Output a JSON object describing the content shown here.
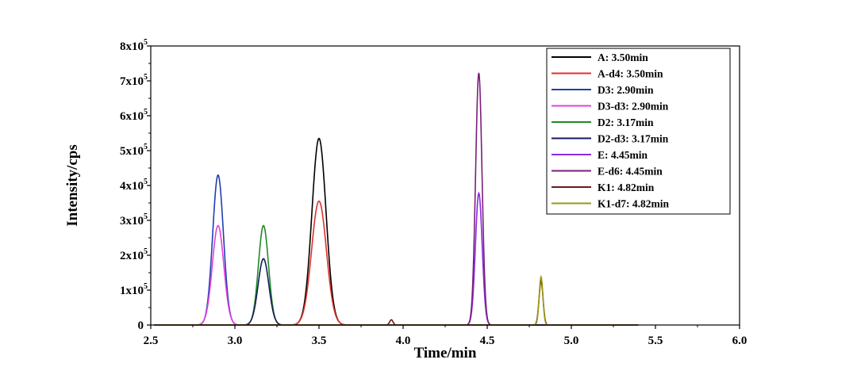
{
  "chart_data": {
    "type": "line",
    "title": "",
    "xlabel": "Time/min",
    "ylabel": "Intensity/cps",
    "xlim": [
      2.5,
      6.0
    ],
    "ylim": [
      0,
      800000
    ],
    "x_ticks": [
      2.5,
      3.0,
      3.5,
      4.0,
      4.5,
      5.0,
      5.5,
      6.0
    ],
    "x_tick_labels": [
      "2.5",
      "3.0",
      "3.5",
      "4.0",
      "4.5",
      "5.0",
      "5.5",
      "6.0"
    ],
    "y_ticks": [
      0,
      100000,
      200000,
      300000,
      400000,
      500000,
      600000,
      700000,
      800000
    ],
    "y_tick_labels": [
      {
        "mantissa": "0",
        "exp": ""
      },
      {
        "mantissa": "1x10",
        "exp": "5"
      },
      {
        "mantissa": "2x10",
        "exp": "5"
      },
      {
        "mantissa": "3x10",
        "exp": "5"
      },
      {
        "mantissa": "4x10",
        "exp": "5"
      },
      {
        "mantissa": "5x10",
        "exp": "5"
      },
      {
        "mantissa": "6x10",
        "exp": "5"
      },
      {
        "mantissa": "7x10",
        "exp": "5"
      },
      {
        "mantissa": "8x10",
        "exp": "5"
      }
    ],
    "grid": false,
    "legend_position": "top-right",
    "series": [
      {
        "name": "A: 3.50min",
        "color": "#000000",
        "peaks": [
          {
            "rt": 3.5,
            "height": 535000,
            "width": 0.042
          }
        ]
      },
      {
        "name": "A-d4: 3.50min",
        "color": "#e0302a",
        "peaks": [
          {
            "rt": 3.5,
            "height": 355000,
            "width": 0.044
          }
        ]
      },
      {
        "name": "D3: 2.90min",
        "color": "#1f3fb0",
        "peaks": [
          {
            "rt": 2.9,
            "height": 430000,
            "width": 0.032
          }
        ]
      },
      {
        "name": "D3-d3: 2.90min",
        "color": "#e040e0",
        "peaks": [
          {
            "rt": 2.9,
            "height": 285000,
            "width": 0.034
          }
        ]
      },
      {
        "name": "D2: 3.17min",
        "color": "#1f8a2a",
        "peaks": [
          {
            "rt": 3.17,
            "height": 285000,
            "width": 0.03
          }
        ]
      },
      {
        "name": "D2-d3: 3.17min",
        "color": "#141a5c",
        "peaks": [
          {
            "rt": 3.17,
            "height": 190000,
            "width": 0.032
          }
        ]
      },
      {
        "name": "E: 4.45min",
        "color": "#8a2be2",
        "peaks": [
          {
            "rt": 4.45,
            "height": 378000,
            "width": 0.02
          }
        ]
      },
      {
        "name": "E-d6: 4.45min",
        "color": "#7a1f7a",
        "peaks": [
          {
            "rt": 4.45,
            "height": 723000,
            "width": 0.019
          }
        ]
      },
      {
        "name": "K1: 4.82min",
        "color": "#6b1a1a",
        "peaks": [
          {
            "rt": 4.82,
            "height": 125000,
            "width": 0.012
          },
          {
            "rt": 3.93,
            "height": 15000,
            "width": 0.01
          }
        ]
      },
      {
        "name": "K1-d7: 4.82min",
        "color": "#9a9a10",
        "peaks": [
          {
            "rt": 4.82,
            "height": 138000,
            "width": 0.011
          }
        ]
      }
    ]
  }
}
